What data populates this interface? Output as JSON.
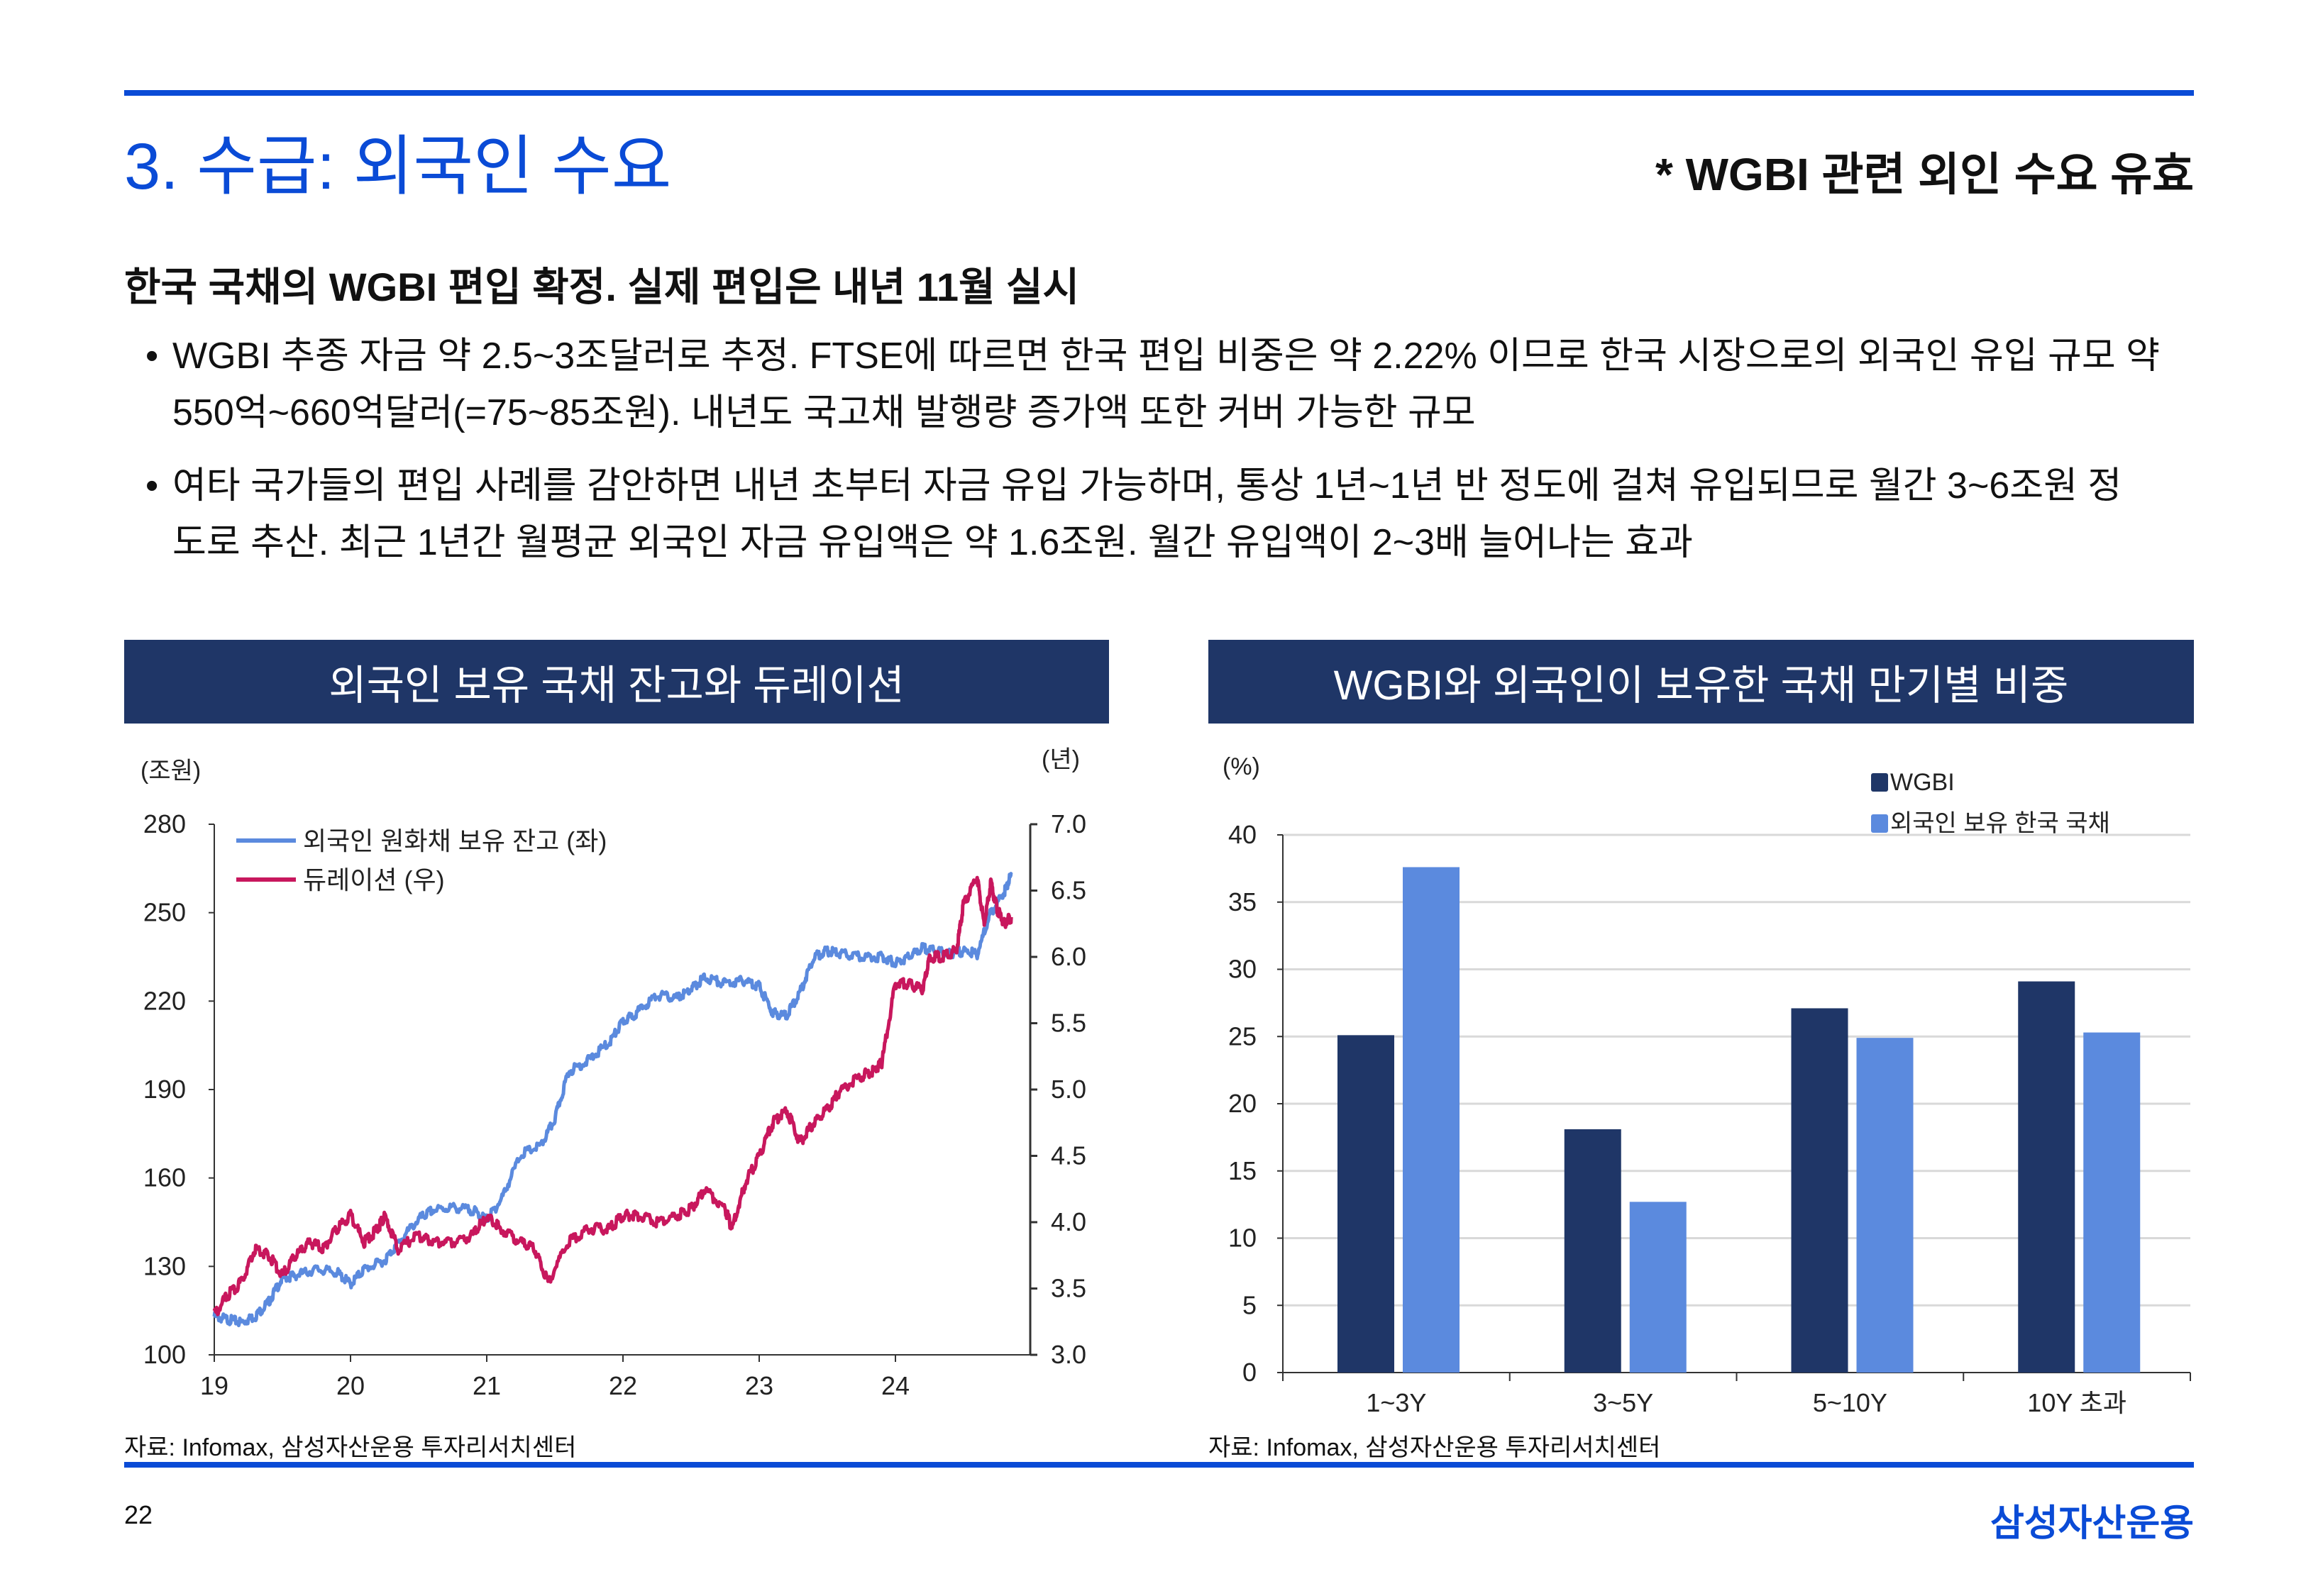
{
  "header": {
    "title": "3. 수급: 외국인 수요",
    "note": "* WGBI 관련 외인 수요 유효"
  },
  "subtitle": "한국 국채의 WGBI 편입 확정. 실제 편입은 내년 11월 실시",
  "bullets": [
    {
      "line1": "WGBI 추종 자금 약 2.5~3조달러로 추정. FTSE에 따르면 한국 편입 비중은 약 2.22% 이므로 한국 시장으로의 외국인 유입 규모 약",
      "line2": "550억~660억달러(=75~85조원). 내년도 국고채 발행량 증가액 또한 커버 가능한 규모"
    },
    {
      "line1": "여타 국가들의 편입 사례를 감안하면 내년 초부터 자금 유입 가능하며, 통상 1년~1년 반 정도에 걸쳐 유입되므로 월간 3~6조원 정",
      "line2": "도로 추산. 최근 1년간 월평균 외국인 자금 유입액은 약 1.6조원. 월간 유입액이 2~3배 늘어나는 효과"
    }
  ],
  "bullet_symbol": "•",
  "colors": {
    "accent": "#0a4bd6",
    "header_bg": "#1f3667",
    "wgbi": "#1f3667",
    "foreign": "#5b8ade",
    "holdings": "#5b8ade",
    "duration": "#c8175d"
  },
  "chart_data": [
    {
      "type": "line",
      "title": "외국인 보유 국채 잔고와 듀레이션",
      "ylabel": "(조원)",
      "y2label": "(년)",
      "x_ticks": [
        "19",
        "20",
        "21",
        "22",
        "23",
        "24"
      ],
      "xlim": [
        19,
        25
      ],
      "ylim": [
        100,
        280
      ],
      "y_ticks": [
        "100",
        "130",
        "160",
        "190",
        "220",
        "250",
        "280"
      ],
      "y2lim": [
        3.0,
        7.0
      ],
      "y2_ticks": [
        "3.0",
        "3.5",
        "4.0",
        "4.5",
        "5.0",
        "5.5",
        "6.0",
        "6.5",
        "7.0"
      ],
      "legend_position": "top-left",
      "series": [
        {
          "name": "외국인 원화채 보유 잔고 (좌)",
          "axis": "left",
          "x": [
            19.0,
            19.1,
            19.2,
            19.3,
            19.4,
            19.5,
            19.6,
            19.75,
            19.9,
            20.0,
            20.1,
            20.25,
            20.35,
            20.5,
            20.6,
            20.75,
            20.9,
            21.0,
            21.1,
            21.25,
            21.4,
            21.5,
            21.6,
            21.75,
            21.9,
            22.0,
            22.1,
            22.25,
            22.4,
            22.5,
            22.6,
            22.75,
            22.9,
            23.0,
            23.1,
            23.2,
            23.3,
            23.4,
            23.5,
            23.6,
            23.75,
            23.9,
            24.0,
            24.1,
            24.2,
            24.3,
            24.4,
            24.5,
            24.6,
            24.7,
            24.8,
            24.85
          ],
          "values": [
            113,
            112,
            111,
            113,
            118,
            126,
            127,
            129,
            128,
            124,
            129,
            132,
            138,
            146,
            149,
            150,
            149,
            146,
            152,
            168,
            171,
            180,
            196,
            200,
            206,
            213,
            216,
            222,
            221,
            224,
            228,
            226,
            227,
            225,
            216,
            215,
            223,
            235,
            237,
            236,
            235,
            235,
            233,
            235,
            238,
            237,
            236,
            237,
            236,
            250,
            257,
            263
          ]
        },
        {
          "name": "듀레이션 (우)",
          "axis": "right",
          "x": [
            19.0,
            19.1,
            19.2,
            19.3,
            19.4,
            19.5,
            19.6,
            19.7,
            19.8,
            19.9,
            20.0,
            20.1,
            20.2,
            20.25,
            20.35,
            20.5,
            20.6,
            20.75,
            20.9,
            21.0,
            21.1,
            21.25,
            21.35,
            21.45,
            21.6,
            21.75,
            21.9,
            22.0,
            22.1,
            22.25,
            22.4,
            22.5,
            22.6,
            22.75,
            22.8,
            22.9,
            23.0,
            23.1,
            23.2,
            23.3,
            23.4,
            23.5,
            23.6,
            23.75,
            23.85,
            23.9,
            24.0,
            24.1,
            24.2,
            24.25,
            24.35,
            24.45,
            24.5,
            24.6,
            24.65,
            24.7,
            24.75,
            24.8,
            24.85
          ],
          "values": [
            3.3,
            3.45,
            3.55,
            3.8,
            3.75,
            3.6,
            3.75,
            3.85,
            3.8,
            3.95,
            4.05,
            3.85,
            3.95,
            4.05,
            3.8,
            3.9,
            3.85,
            3.85,
            3.9,
            4.05,
            3.95,
            3.85,
            3.8,
            3.55,
            3.85,
            3.95,
            3.95,
            4.05,
            4.05,
            4.0,
            4.05,
            4.1,
            4.25,
            4.1,
            3.95,
            4.3,
            4.5,
            4.75,
            4.85,
            4.6,
            4.75,
            4.85,
            5.0,
            5.1,
            5.15,
            5.2,
            5.8,
            5.8,
            5.75,
            6.0,
            6.0,
            6.05,
            6.4,
            6.6,
            6.25,
            6.55,
            6.35,
            6.25,
            6.3
          ]
        }
      ]
    },
    {
      "type": "bar",
      "title": "WGBI와 외국인이 보유한 국채 만기별 비중",
      "ylabel": "(%)",
      "categories": [
        "1~3Y",
        "3~5Y",
        "5~10Y",
        "10Y 초과"
      ],
      "ylim": [
        0,
        40
      ],
      "y_ticks": [
        "0",
        "5",
        "10",
        "15",
        "20",
        "25",
        "30",
        "35",
        "40"
      ],
      "legend_position": "top-right",
      "series": [
        {
          "name": "WGBI",
          "values": [
            25.1,
            18.1,
            27.1,
            29.1
          ]
        },
        {
          "name": "외국인 보유 한국 국채",
          "values": [
            37.6,
            12.7,
            24.9,
            25.3
          ]
        }
      ]
    }
  ],
  "sources": [
    "자료: Infomax, 삼성자산운용 투자리서치센터",
    "자료: Infomax, 삼성자산운용 투자리서치센터"
  ],
  "footer": {
    "page": "22",
    "logo": "삼성자산운용"
  }
}
